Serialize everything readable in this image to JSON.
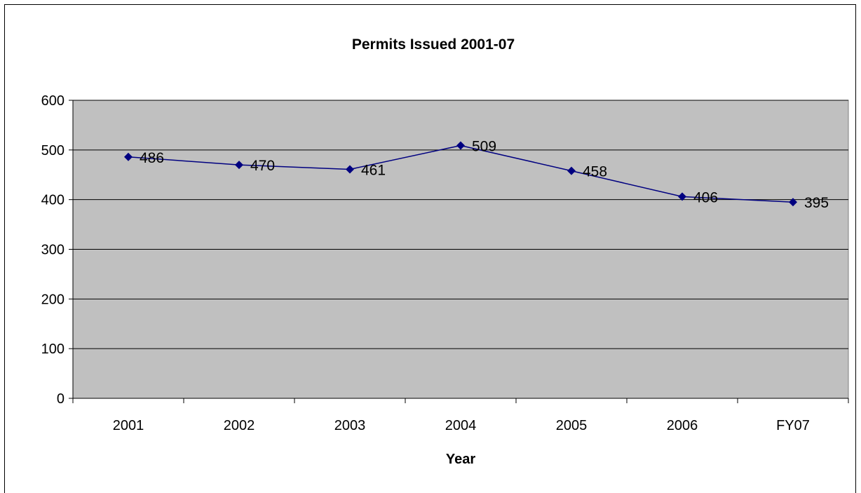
{
  "chart_data": {
    "type": "line",
    "title": "Permits Issued 2001-07",
    "xlabel": "Year",
    "ylabel": "",
    "categories": [
      "2001",
      "2002",
      "2003",
      "2004",
      "2005",
      "2006",
      "FY07"
    ],
    "series": [
      {
        "values": [
          486,
          470,
          461,
          509,
          458,
          406,
          395
        ],
        "color": "#000080"
      }
    ],
    "ylim": [
      0,
      600
    ],
    "yticks": [
      0,
      100,
      200,
      300,
      400,
      500,
      600
    ],
    "grid": true,
    "legend": "none",
    "data_labels": true,
    "plot_background": "#c0c0c0",
    "marker": "diamond"
  }
}
